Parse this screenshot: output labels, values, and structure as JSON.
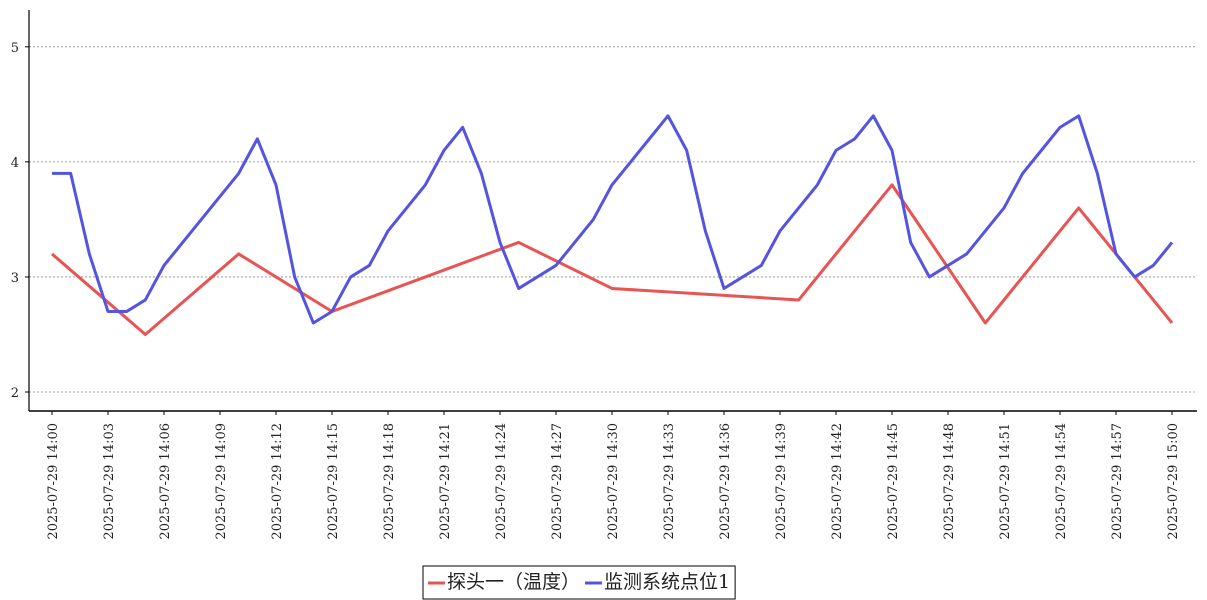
{
  "chart_data": {
    "type": "line",
    "xlim": [
      "2025-07-29 14:00",
      "2025-07-29 15:00"
    ],
    "xticks": [
      "2025-07-29 14:00",
      "2025-07-29 14:03",
      "2025-07-29 14:06",
      "2025-07-29 14:09",
      "2025-07-29 14:12",
      "2025-07-29 14:15",
      "2025-07-29 14:18",
      "2025-07-29 14:21",
      "2025-07-29 14:24",
      "2025-07-29 14:27",
      "2025-07-29 14:30",
      "2025-07-29 14:33",
      "2025-07-29 14:36",
      "2025-07-29 14:39",
      "2025-07-29 14:42",
      "2025-07-29 14:45",
      "2025-07-29 14:48",
      "2025-07-29 14:51",
      "2025-07-29 14:54",
      "2025-07-29 14:57",
      "2025-07-29 15:00"
    ],
    "ylim": [
      1.835,
      5.32
    ],
    "yticks": [
      2,
      3,
      4,
      5
    ],
    "grid": true,
    "legend": "bottom",
    "series": [
      {
        "name": "探头一（温度）",
        "color": "#e85454",
        "x": [
          "2025-07-29 14:00",
          "2025-07-29 14:05",
          "2025-07-29 14:10",
          "2025-07-29 14:15",
          "2025-07-29 14:25",
          "2025-07-29 14:30",
          "2025-07-29 14:40",
          "2025-07-29 14:45",
          "2025-07-29 14:50",
          "2025-07-29 14:55",
          "2025-07-29 15:00"
        ],
        "values": [
          3.2,
          2.5,
          3.2,
          2.7,
          3.3,
          2.9,
          2.8,
          3.8,
          2.6,
          3.6,
          2.6
        ]
      },
      {
        "name": "监测系统点位1",
        "color": "#5454e0",
        "x": [
          "2025-07-29 14:00",
          "2025-07-29 14:01",
          "2025-07-29 14:02",
          "2025-07-29 14:03",
          "2025-07-29 14:04",
          "2025-07-29 14:05",
          "2025-07-29 14:06",
          "2025-07-29 14:07",
          "2025-07-29 14:08",
          "2025-07-29 14:09",
          "2025-07-29 14:10",
          "2025-07-29 14:11",
          "2025-07-29 14:12",
          "2025-07-29 14:13",
          "2025-07-29 14:14",
          "2025-07-29 14:15",
          "2025-07-29 14:16",
          "2025-07-29 14:17",
          "2025-07-29 14:18",
          "2025-07-29 14:19",
          "2025-07-29 14:20",
          "2025-07-29 14:21",
          "2025-07-29 14:22",
          "2025-07-29 14:23",
          "2025-07-29 14:24",
          "2025-07-29 14:25",
          "2025-07-29 14:26",
          "2025-07-29 14:27",
          "2025-07-29 14:28",
          "2025-07-29 14:29",
          "2025-07-29 14:30",
          "2025-07-29 14:31",
          "2025-07-29 14:32",
          "2025-07-29 14:33",
          "2025-07-29 14:34",
          "2025-07-29 14:35",
          "2025-07-29 14:36",
          "2025-07-29 14:37",
          "2025-07-29 14:38",
          "2025-07-29 14:39",
          "2025-07-29 14:40",
          "2025-07-29 14:41",
          "2025-07-29 14:42",
          "2025-07-29 14:43",
          "2025-07-29 14:44",
          "2025-07-29 14:45",
          "2025-07-29 14:46",
          "2025-07-29 14:47",
          "2025-07-29 14:48",
          "2025-07-29 14:49",
          "2025-07-29 14:50",
          "2025-07-29 14:51",
          "2025-07-29 14:52",
          "2025-07-29 14:53",
          "2025-07-29 14:54",
          "2025-07-29 14:55",
          "2025-07-29 14:56",
          "2025-07-29 14:57",
          "2025-07-29 14:58",
          "2025-07-29 14:59",
          "2025-07-29 15:00"
        ],
        "values": [
          3.9,
          3.9,
          3.2,
          2.7,
          2.7,
          2.8,
          3.1,
          3.3,
          3.5,
          3.7,
          3.9,
          4.2,
          3.8,
          3.0,
          2.6,
          2.7,
          3.0,
          3.1,
          3.4,
          3.6,
          3.8,
          4.1,
          4.3,
          3.9,
          3.3,
          2.9,
          3.0,
          3.1,
          3.3,
          3.5,
          3.8,
          4.0,
          4.2,
          4.4,
          4.1,
          3.4,
          2.9,
          3.0,
          3.1,
          3.4,
          3.6,
          3.8,
          4.1,
          4.2,
          4.4,
          4.1,
          3.3,
          3.0,
          3.1,
          3.2,
          3.4,
          3.6,
          3.9,
          4.1,
          4.3,
          4.4,
          3.9,
          3.2,
          3.0,
          3.1,
          3.3
        ]
      }
    ]
  }
}
